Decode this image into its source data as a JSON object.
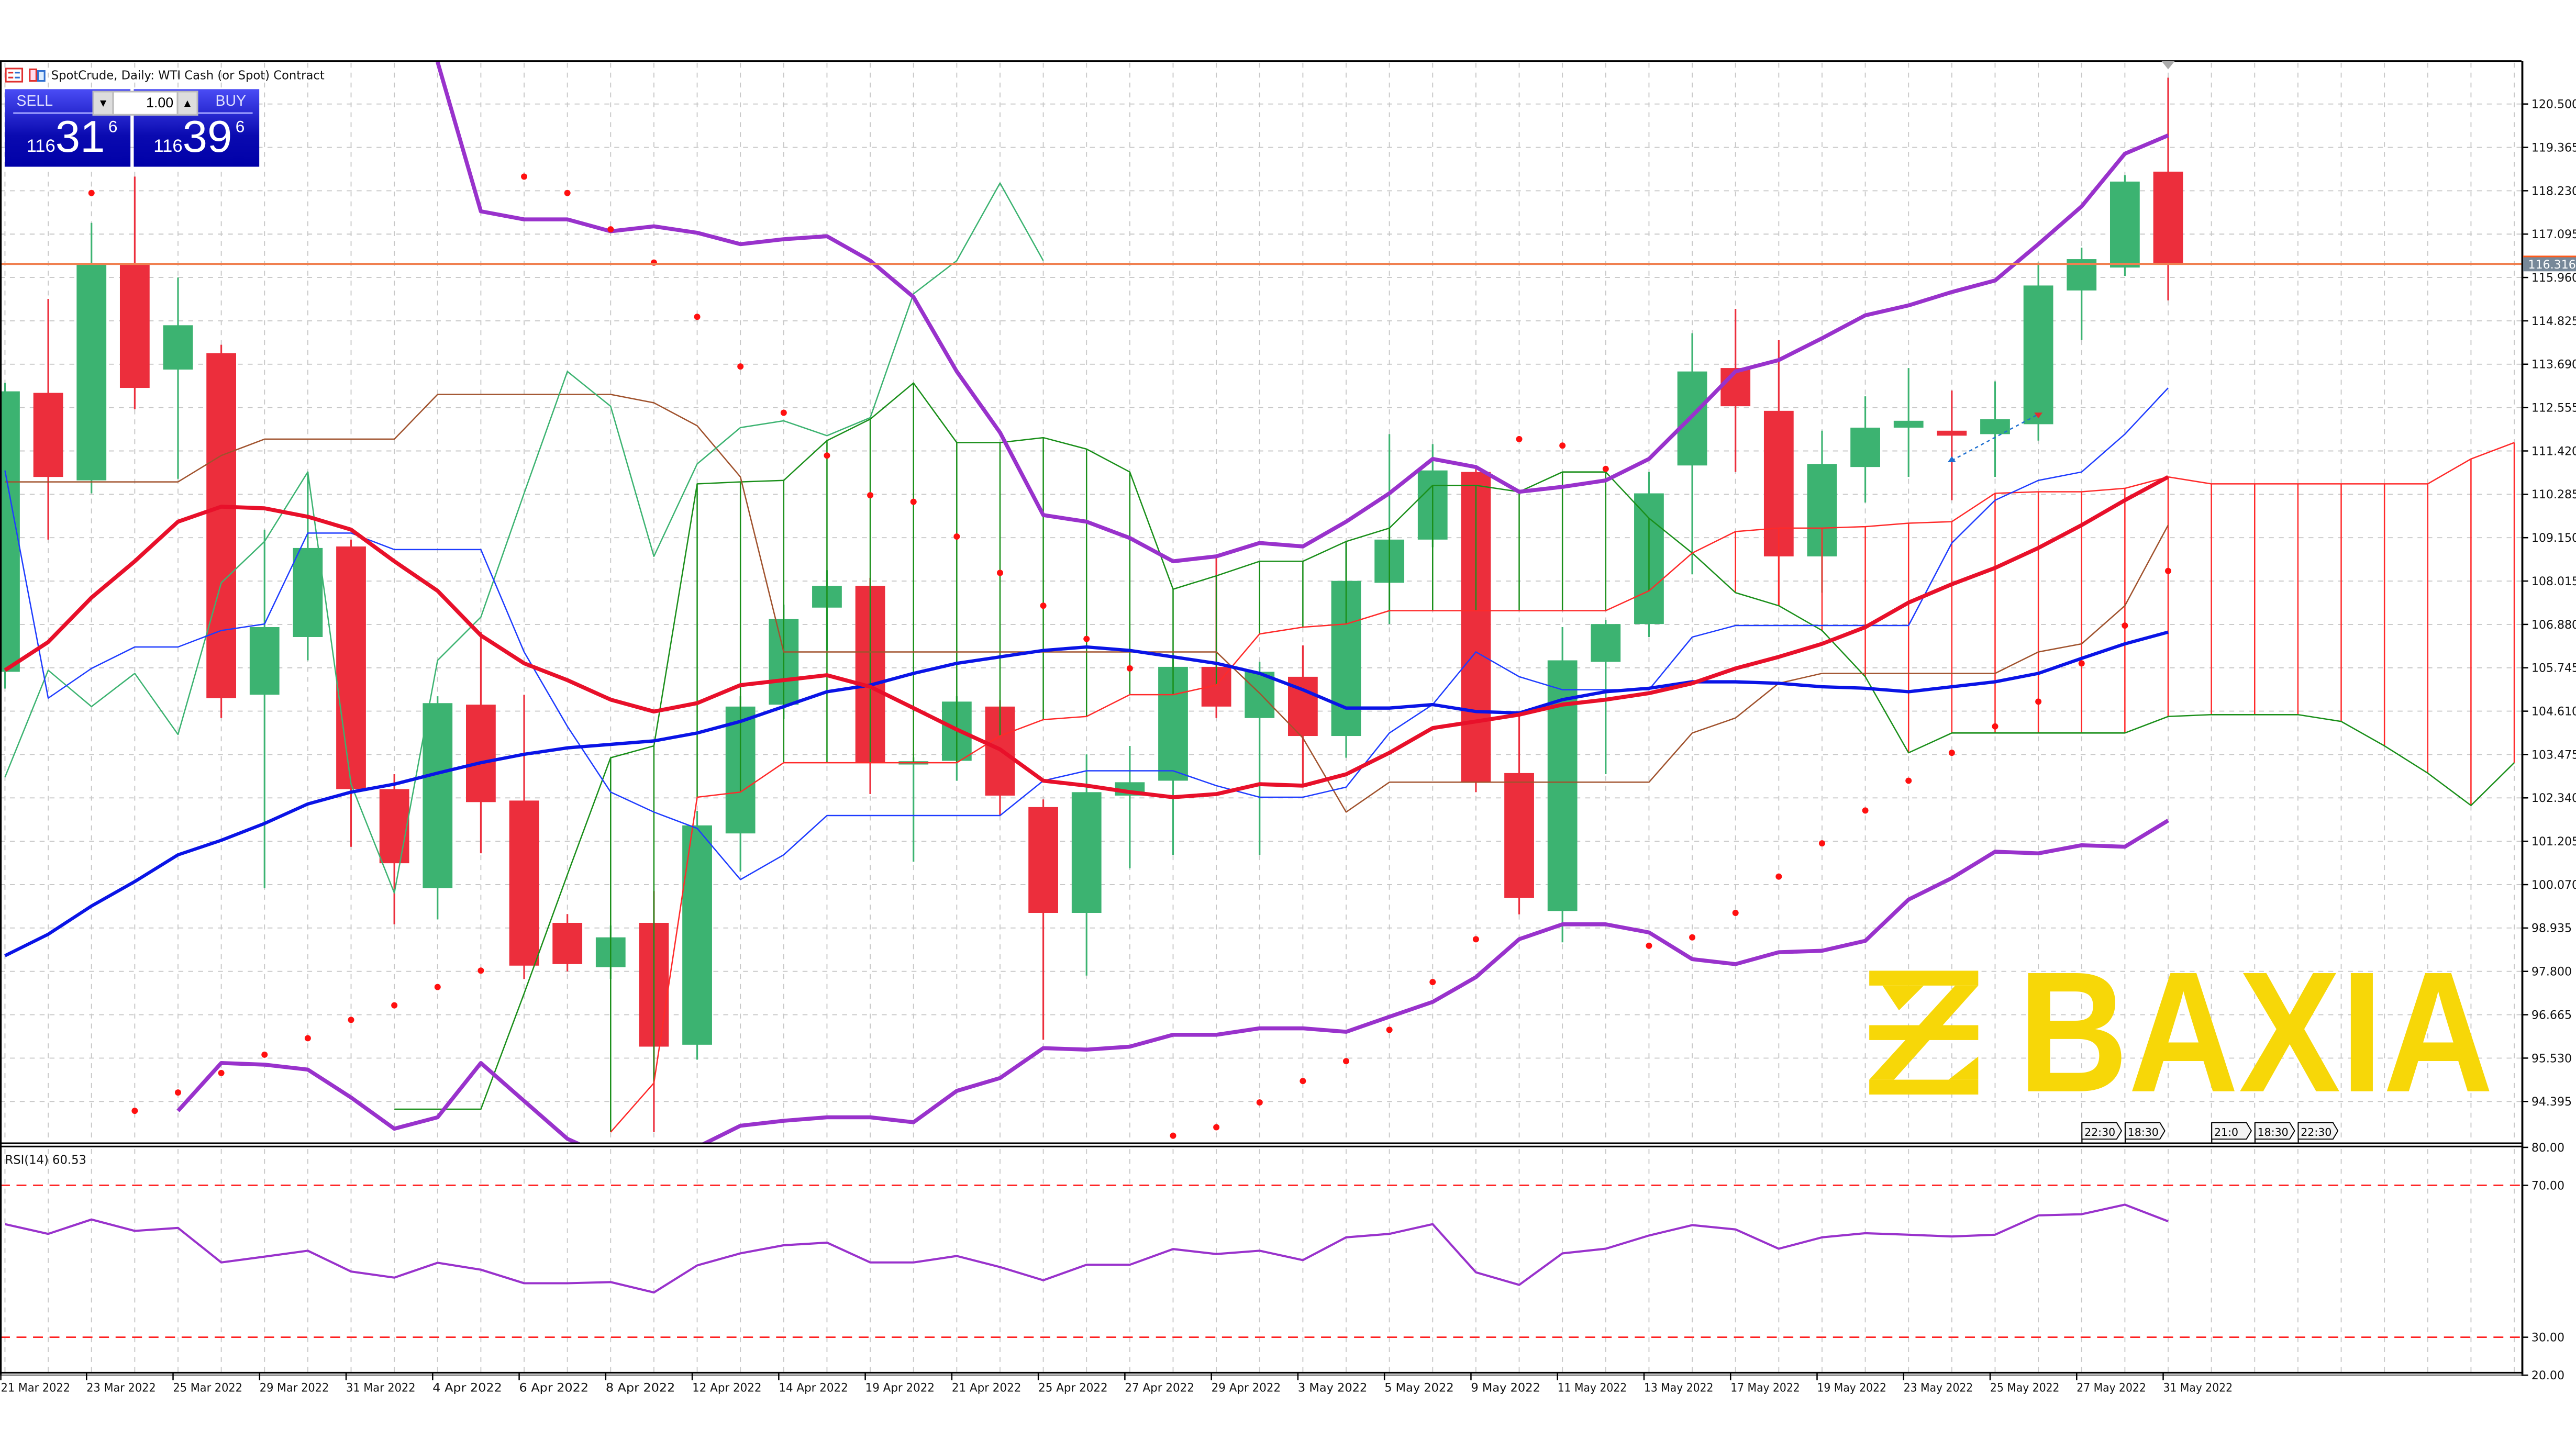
{
  "window": {
    "title": "SpotCrude, Daily:  WTI Cash (or Spot) Contract"
  },
  "trade_panel": {
    "sell_label": "SELL",
    "buy_label": "BUY",
    "lot": "1.00",
    "sell_price": {
      "prefix": "116",
      "main": "31",
      "sup": "6"
    },
    "buy_price": {
      "prefix": "116",
      "main": "39",
      "sup": "6"
    }
  },
  "rsi": {
    "label": "RSI(14) 60.53"
  },
  "event_flags": [
    "22:30",
    "18:30",
    "21:0",
    "18:30",
    "22:30"
  ],
  "logo": {
    "text": "BAXIA",
    "color": "#F7D708"
  },
  "colors": {
    "bull": "#3CB371",
    "bear": "#EC2E3C",
    "ma_red": "#E8102A",
    "ma_blue": "#0A14E6",
    "bollinger": "#9932CC",
    "sar": "#FF1010",
    "price_line": "#F08050",
    "price_label_bg": "#778899",
    "span_a": "#1A8F1A",
    "span_b": "#FF2A2A",
    "brown": "#A0522D",
    "chikou": "#3CB371",
    "thin_blue": "#1E3CFF",
    "rsi": "#9932CC",
    "rsi_levels": "#FF2020"
  },
  "chart_data": [
    {
      "type": "candlestick",
      "title": "SpotCrude, Daily:  WTI Cash (or Spot) Contract",
      "y_ticks": [
        "120.500",
        "119.365",
        "118.230",
        "117.095",
        "115.960",
        "114.825",
        "113.690",
        "112.555",
        "111.420",
        "110.285",
        "109.150",
        "108.015",
        "106.880",
        "105.745",
        "104.610",
        "103.475",
        "102.340",
        "101.205",
        "100.070",
        "98.935",
        "97.800",
        "96.665",
        "95.530",
        "94.395"
      ],
      "ylim": [
        93.2,
        121.6
      ],
      "x_tick_labels": [
        "21 Mar 2022",
        "23 Mar 2022",
        "25 Mar 2022",
        "29 Mar 2022",
        "31 Mar 2022",
        "4 Apr 2022",
        "6 Apr 2022",
        "8 Apr 2022",
        "12 Apr 2022",
        "14 Apr 2022",
        "19 Apr 2022",
        "21 Apr 2022",
        "25 Apr 2022",
        "27 Apr 2022",
        "29 Apr 2022",
        "3 May 2022",
        "5 May 2022",
        "9 May 2022",
        "11 May 2022",
        "13 May 2022",
        "17 May 2022",
        "19 May 2022",
        "23 May 2022",
        "25 May 2022",
        "27 May 2022",
        "31 May 2022"
      ],
      "current_price": "116.316",
      "grid": true,
      "candles_ohlc": [
        [
          105.64,
          113.2,
          105.2,
          112.98
        ],
        [
          112.94,
          115.4,
          109.1,
          110.74
        ],
        [
          110.65,
          117.39,
          110.31,
          116.31
        ],
        [
          116.31,
          118.6,
          112.51,
          113.07
        ],
        [
          113.55,
          115.96,
          110.69,
          114.71
        ],
        [
          113.98,
          114.2,
          104.43,
          104.95
        ],
        [
          105.04,
          109.36,
          99.98,
          106.81
        ],
        [
          106.55,
          110.87,
          105.94,
          108.88
        ],
        [
          108.92,
          109.1,
          101.06,
          102.57
        ],
        [
          102.57,
          102.96,
          99.03,
          100.63
        ],
        [
          99.98,
          105.0,
          99.16,
          104.82
        ],
        [
          104.78,
          106.68,
          100.89,
          102.23
        ],
        [
          102.27,
          105.04,
          97.6,
          97.95
        ],
        [
          99.07,
          99.3,
          97.8,
          97.99
        ],
        [
          97.91,
          99.0,
          97.6,
          98.69
        ],
        [
          99.07,
          99.9,
          93.59,
          95.83
        ],
        [
          95.88,
          102.0,
          95.49,
          101.62
        ],
        [
          101.41,
          105.0,
          100.41,
          104.73
        ],
        [
          104.78,
          107.4,
          104.4,
          107.02
        ],
        [
          107.32,
          108.3,
          106.2,
          107.89
        ],
        [
          107.89,
          108.1,
          102.44,
          103.26
        ],
        [
          103.26,
          103.4,
          100.67,
          103.3
        ],
        [
          103.31,
          105.0,
          102.79,
          104.86
        ],
        [
          104.73,
          104.9,
          101.88,
          102.4
        ],
        [
          102.1,
          102.3,
          96.01,
          99.33
        ],
        [
          99.33,
          103.48,
          97.69,
          102.49
        ],
        [
          102.4,
          103.7,
          100.5,
          102.75
        ],
        [
          102.79,
          106.0,
          100.85,
          105.77
        ],
        [
          105.77,
          108.66,
          104.43,
          104.73
        ],
        [
          104.43,
          105.9,
          100.85,
          105.64
        ],
        [
          105.51,
          106.33,
          102.7,
          103.96
        ],
        [
          103.96,
          109.01,
          103.39,
          108.02
        ],
        [
          107.97,
          111.86,
          106.89,
          109.1
        ],
        [
          109.1,
          111.6,
          108.9,
          110.91
        ],
        [
          110.87,
          111.0,
          102.49,
          102.75
        ],
        [
          102.99,
          104.52,
          99.29,
          99.72
        ],
        [
          99.38,
          106.81,
          98.56,
          105.94
        ],
        [
          105.9,
          107.0,
          102.96,
          106.89
        ],
        [
          106.89,
          110.87,
          106.55,
          110.31
        ],
        [
          111.04,
          114.5,
          108.19,
          113.5
        ],
        [
          113.59,
          115.14,
          110.87,
          112.59
        ],
        [
          112.47,
          114.32,
          107.37,
          108.66
        ],
        [
          108.66,
          111.95,
          107.71,
          111.08
        ],
        [
          111.0,
          112.85,
          110.07,
          112.03
        ],
        [
          112.03,
          113.59,
          110.74,
          112.21
        ],
        [
          111.95,
          113.0,
          110.13,
          111.82
        ],
        [
          111.86,
          113.24,
          110.74,
          112.25
        ],
        [
          112.12,
          116.35,
          111.69,
          115.75
        ],
        [
          115.62,
          116.74,
          114.32,
          116.44
        ],
        [
          116.22,
          118.64,
          116.0,
          118.47
        ],
        [
          118.73,
          121.19,
          115.36,
          116.32
        ]
      ],
      "series": [
        {
          "kind": "ma_red",
          "values": [
            105.68,
            106.42,
            107.58,
            108.53,
            109.57,
            109.96,
            109.92,
            109.7,
            109.36,
            108.53,
            107.76,
            106.59,
            105.86,
            105.42,
            104.91,
            104.6,
            104.82,
            105.29,
            105.42,
            105.55,
            105.25,
            104.69,
            104.13,
            103.61,
            102.79,
            102.66,
            102.49,
            102.36,
            102.44,
            102.7,
            102.66,
            102.96,
            103.52,
            104.17,
            104.34,
            104.52,
            104.78,
            104.91,
            105.08,
            105.34,
            105.73,
            106.03,
            106.37,
            106.81,
            107.45,
            107.93,
            108.36,
            108.88,
            109.48,
            110.13,
            110.74
          ]
        },
        {
          "kind": "ma_blue",
          "values": [
            98.21,
            98.77,
            99.51,
            100.15,
            100.85,
            101.23,
            101.67,
            102.18,
            102.49,
            102.7,
            102.99,
            103.26,
            103.48,
            103.65,
            103.74,
            103.83,
            104.04,
            104.34,
            104.73,
            105.12,
            105.29,
            105.6,
            105.86,
            106.03,
            106.2,
            106.29,
            106.2,
            106.03,
            105.86,
            105.6,
            105.17,
            104.69,
            104.69,
            104.78,
            104.6,
            104.56,
            104.91,
            105.12,
            105.21,
            105.38,
            105.38,
            105.34,
            105.25,
            105.21,
            105.12,
            105.25,
            105.38,
            105.6,
            105.99,
            106.37,
            106.68
          ]
        },
        {
          "kind": "bollinger_upper",
          "values": [
            null,
            null,
            null,
            null,
            null,
            null,
            null,
            null,
            null,
            null,
            121.6,
            117.69,
            117.48,
            117.48,
            117.17,
            117.3,
            117.13,
            116.83,
            116.96,
            117.04,
            116.4,
            115.45,
            113.5,
            111.9,
            109.74,
            109.57,
            109.14,
            108.53,
            108.66,
            109.01,
            108.92,
            109.57,
            110.31,
            111.21,
            111.0,
            110.35,
            110.48,
            110.65,
            111.21,
            112.34,
            113.5,
            113.8,
            114.37,
            114.97,
            115.23,
            115.58,
            115.88,
            116.83,
            117.82,
            119.2,
            119.68
          ]
        },
        {
          "kind": "bollinger_lower",
          "values": [
            null,
            null,
            null,
            null,
            94.15,
            95.4,
            95.36,
            95.23,
            94.5,
            93.68,
            93.98,
            95.4,
            94.41,
            93.42,
            92.9,
            92.6,
            93.2,
            93.76,
            93.89,
            93.98,
            93.98,
            93.85,
            94.67,
            95.01,
            95.79,
            95.75,
            95.83,
            96.14,
            96.14,
            96.31,
            96.31,
            96.22,
            96.61,
            97.0,
            97.65,
            98.64,
            99.03,
            99.03,
            98.82,
            98.12,
            97.99,
            98.3,
            98.34,
            98.6,
            99.68,
            100.24,
            100.93,
            100.89,
            101.1,
            101.06,
            101.75
          ]
        },
        {
          "kind": "thin_blue",
          "values": [
            110.91,
            104.95,
            105.73,
            106.29,
            106.29,
            106.72,
            106.89,
            109.27,
            109.27,
            108.84,
            108.84,
            108.84,
            106.16,
            104.21,
            102.49,
            101.97,
            101.54,
            100.2,
            100.85,
            101.88,
            101.88,
            101.88,
            101.88,
            101.88,
            102.79,
            103.05,
            103.05,
            103.05,
            102.66,
            102.36,
            102.36,
            102.62,
            104.04,
            104.78,
            106.16,
            105.51,
            105.17,
            105.17,
            105.17,
            106.55,
            106.85,
            106.85,
            106.85,
            106.85,
            106.85,
            109.01,
            110.13,
            110.65,
            110.87,
            111.86,
            113.07
          ]
        },
        {
          "kind": "brown",
          "values": [
            110.61,
            110.61,
            110.61,
            110.61,
            110.61,
            111.3,
            111.73,
            111.73,
            111.73,
            111.73,
            112.9,
            112.9,
            112.9,
            112.9,
            112.9,
            112.68,
            112.08,
            110.74,
            106.16,
            106.16,
            106.16,
            106.16,
            106.16,
            106.16,
            106.16,
            106.16,
            106.16,
            106.16,
            106.16,
            105.08,
            103.91,
            101.97,
            102.75,
            102.75,
            102.75,
            102.75,
            102.75,
            102.75,
            102.75,
            104.04,
            104.43,
            105.34,
            105.6,
            105.6,
            105.6,
            105.6,
            105.6,
            106.16,
            106.37,
            107.37,
            109.48
          ]
        },
        {
          "kind": "chikou",
          "values": [
            102.88,
            105.68,
            104.73,
            105.6,
            104.0,
            107.97,
            109.05,
            110.87,
            102.7,
            99.85,
            105.94,
            107.07,
            110.31,
            113.5,
            112.59,
            108.66,
            111.08,
            112.03,
            112.21,
            111.82,
            112.29,
            115.53,
            116.4,
            118.43,
            116.4
          ]
        },
        {
          "kind": "span_a",
          "values": [
            null,
            null,
            null,
            null,
            null,
            null,
            null,
            null,
            null,
            94.19,
            94.19,
            94.19,
            97.22,
            100.33,
            103.39,
            103.7,
            110.56,
            110.61,
            110.65,
            111.69,
            112.25,
            113.2,
            111.64,
            111.64,
            111.77,
            111.47,
            110.87,
            107.8,
            108.15,
            108.53,
            108.53,
            109.05,
            109.4,
            110.52,
            110.52,
            110.35,
            110.87,
            110.87,
            109.66,
            108.75,
            107.71,
            107.37,
            106.72,
            105.51,
            103.52,
            104.04,
            104.04,
            104.04,
            104.04,
            104.04,
            104.47,
            104.52,
            104.52,
            104.52,
            104.34,
            103.7,
            102.99,
            102.14,
            103.26
          ]
        },
        {
          "kind": "span_b",
          "values": [
            null,
            null,
            null,
            null,
            null,
            null,
            null,
            null,
            null,
            null,
            null,
            null,
            null,
            null,
            93.59,
            94.88,
            102.36,
            102.49,
            103.26,
            103.26,
            103.26,
            103.26,
            103.26,
            103.96,
            104.39,
            104.47,
            105.04,
            105.04,
            105.29,
            106.63,
            106.81,
            106.89,
            107.24,
            107.24,
            107.24,
            107.24,
            107.24,
            107.24,
            107.76,
            108.75,
            109.31,
            109.4,
            109.4,
            109.44,
            109.53,
            109.57,
            110.31,
            110.35,
            110.35,
            110.44,
            110.74,
            110.56,
            110.56,
            110.56,
            110.56,
            110.56,
            110.56,
            111.21,
            111.64
          ]
        },
        {
          "kind": "parabolic_sar",
          "values": [
            null,
            null,
            118.17,
            94.15,
            94.63,
            95.14,
            95.62,
            96.05,
            96.53,
            96.91,
            97.39,
            97.82,
            118.6,
            118.17,
            117.22,
            116.35,
            114.93,
            113.63,
            112.42,
            111.3,
            110.26,
            110.09,
            109.18,
            108.23,
            107.37,
            106.5,
            105.73,
            93.5,
            93.72,
            94.37,
            94.93,
            95.45,
            96.27,
            97.52,
            98.64,
            111.73,
            111.56,
            110.95,
            98.47,
            98.69,
            99.33,
            100.28,
            101.15,
            102.01,
            102.79,
            103.52,
            104.21,
            104.86,
            105.86,
            106.85,
            108.28
          ]
        }
      ],
      "trade_line": {
        "from": {
          "index": 45,
          "price": 111.17
        },
        "to": {
          "index": 47,
          "price": 112.38
        }
      }
    },
    {
      "type": "line",
      "title": "RSI(14) 60.53",
      "y_ticks": [
        "80.00",
        "70.00",
        "30.00",
        "20.00"
      ],
      "ylim": [
        20,
        80
      ],
      "levels": [
        70,
        30
      ],
      "values": [
        59.8,
        57.2,
        61.0,
        58.0,
        58.8,
        49.7,
        51.2,
        52.8,
        47.3,
        45.7,
        49.6,
        47.8,
        44.2,
        44.2,
        44.5,
        41.8,
        48.9,
        52.1,
        54.2,
        54.9,
        49.7,
        49.7,
        51.4,
        48.5,
        45.0,
        49.1,
        49.1,
        53.2,
        51.9,
        52.8,
        50.3,
        56.3,
        57.2,
        59.8,
        47.1,
        43.8,
        52.1,
        53.3,
        56.8,
        59.5,
        58.4,
        53.3,
        56.3,
        57.4,
        57.0,
        56.5,
        57.0,
        62.1,
        62.4,
        64.9,
        60.53
      ]
    }
  ]
}
